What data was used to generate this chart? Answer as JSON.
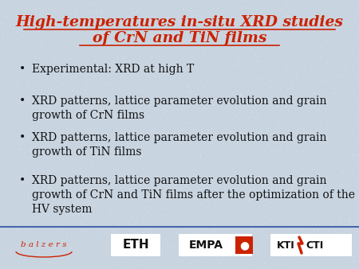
{
  "title_line1": "High-temperatures in-situ XRD studies",
  "title_line2": "of CrN and TiN films",
  "title_color": "#cc2200",
  "title_fontsize": 13.5,
  "background_color": "#c8d4e0",
  "bullet_color": "#111111",
  "bullet_fontsize": 10.0,
  "bullets": [
    "Experimental: XRD at high T",
    "XRD patterns, lattice parameter evolution and grain\ngrowth of CrN films",
    "XRD patterns, lattice parameter evolution and grain\ngrowth of TiN films",
    "XRD patterns, lattice parameter evolution and grain\ngrowth of CrN and TiN films after the optimization of the\nHV system"
  ],
  "footer_line_color": "#4466aa",
  "balzers_color": "#cc2200",
  "eth_color": "#111111",
  "empa_color": "#111111",
  "kti_color": "#111111",
  "white": "#ffffff",
  "red": "#cc2200"
}
